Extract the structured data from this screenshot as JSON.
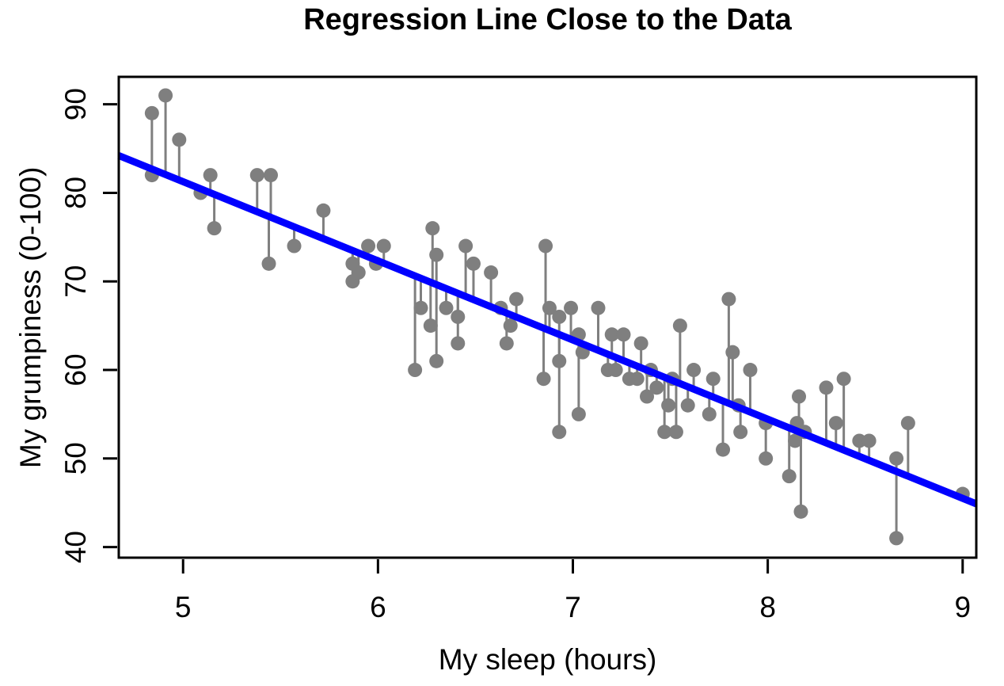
{
  "chart_data": {
    "type": "scatter",
    "title": "Regression Line Close to the Data",
    "xlabel": "My sleep (hours)",
    "ylabel": "My grumpiness (0-100)",
    "x_ticks": [
      5,
      6,
      7,
      8,
      9
    ],
    "y_ticks": [
      40,
      50,
      60,
      70,
      80,
      90
    ],
    "xlim": [
      4.67,
      9.07
    ],
    "ylim": [
      38.8,
      93.1
    ],
    "grid": false,
    "legend": null,
    "residuals_shown": true,
    "point_color": "#7f7f7f",
    "stem_color": "#7f7f7f",
    "axis_color": "#000000",
    "regression_line": {
      "intercept": 125.96,
      "slope": -8.94,
      "color": "#0000ff"
    },
    "points": [
      [
        4.84,
        89
      ],
      [
        4.84,
        82
      ],
      [
        4.91,
        91
      ],
      [
        4.98,
        86
      ],
      [
        5.09,
        80
      ],
      [
        5.14,
        82
      ],
      [
        5.16,
        76
      ],
      [
        5.38,
        82
      ],
      [
        5.44,
        72
      ],
      [
        5.45,
        82
      ],
      [
        5.57,
        74
      ],
      [
        5.72,
        78
      ],
      [
        5.87,
        72
      ],
      [
        5.87,
        70
      ],
      [
        5.9,
        71
      ],
      [
        5.95,
        74
      ],
      [
        5.99,
        72
      ],
      [
        6.03,
        74
      ],
      [
        6.19,
        60
      ],
      [
        6.22,
        67
      ],
      [
        6.27,
        65
      ],
      [
        6.28,
        76
      ],
      [
        6.3,
        73
      ],
      [
        6.3,
        61
      ],
      [
        6.35,
        67
      ],
      [
        6.41,
        66
      ],
      [
        6.41,
        63
      ],
      [
        6.45,
        74
      ],
      [
        6.49,
        72
      ],
      [
        6.58,
        71
      ],
      [
        6.63,
        67
      ],
      [
        6.66,
        63
      ],
      [
        6.68,
        65
      ],
      [
        6.71,
        68
      ],
      [
        6.85,
        59
      ],
      [
        6.86,
        74
      ],
      [
        6.88,
        67
      ],
      [
        6.93,
        66
      ],
      [
        6.93,
        61
      ],
      [
        6.93,
        53
      ],
      [
        6.99,
        67
      ],
      [
        7.03,
        64
      ],
      [
        7.03,
        55
      ],
      [
        7.05,
        62
      ],
      [
        7.13,
        67
      ],
      [
        7.18,
        60
      ],
      [
        7.2,
        64
      ],
      [
        7.22,
        60
      ],
      [
        7.26,
        64
      ],
      [
        7.29,
        59
      ],
      [
        7.33,
        59
      ],
      [
        7.35,
        63
      ],
      [
        7.38,
        57
      ],
      [
        7.4,
        60
      ],
      [
        7.43,
        58
      ],
      [
        7.47,
        53
      ],
      [
        7.49,
        56
      ],
      [
        7.51,
        59
      ],
      [
        7.53,
        53
      ],
      [
        7.55,
        65
      ],
      [
        7.59,
        56
      ],
      [
        7.62,
        60
      ],
      [
        7.7,
        55
      ],
      [
        7.72,
        59
      ],
      [
        7.77,
        51
      ],
      [
        7.8,
        68
      ],
      [
        7.82,
        62
      ],
      [
        7.85,
        56
      ],
      [
        7.86,
        53
      ],
      [
        7.91,
        60
      ],
      [
        7.99,
        54
      ],
      [
        7.99,
        50
      ],
      [
        8.11,
        48
      ],
      [
        8.14,
        52
      ],
      [
        8.15,
        54
      ],
      [
        8.16,
        57
      ],
      [
        8.17,
        44
      ],
      [
        8.19,
        53
      ],
      [
        8.3,
        58
      ],
      [
        8.35,
        54
      ],
      [
        8.39,
        59
      ],
      [
        8.47,
        52
      ],
      [
        8.52,
        52
      ],
      [
        8.66,
        50
      ],
      [
        8.66,
        41
      ],
      [
        8.72,
        54
      ],
      [
        9.0,
        46
      ]
    ]
  }
}
